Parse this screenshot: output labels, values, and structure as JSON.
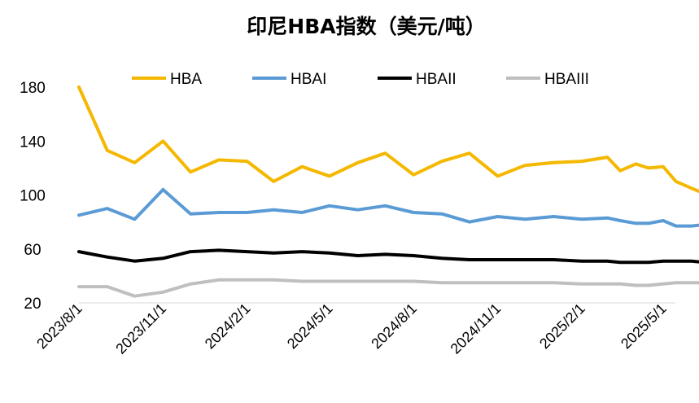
{
  "chart_data": {
    "type": "line",
    "title": "印尼HBA指数（美元/吨）",
    "xlabel": "",
    "ylabel": "",
    "ylim": [
      20,
      180
    ],
    "yticks": [
      "20",
      "60",
      "100",
      "140",
      "180"
    ],
    "xtick_labels": [
      "2023/8/1",
      "2023/11/1",
      "2024/2/1",
      "2024/5/1",
      "2024/8/1",
      "2024/11/1",
      "2025/2/1",
      "2025/5/1"
    ],
    "legend_position": "top",
    "grid": false,
    "x": [
      "2023/8/1",
      "2023/9/1",
      "2023/10/1",
      "2023/11/1",
      "2023/12/1",
      "2024/1/1",
      "2024/2/1",
      "2024/3/1",
      "2024/4/1",
      "2024/5/1",
      "2024/6/1",
      "2024/7/1",
      "2024/8/1",
      "2024/9/1",
      "2024/10/1",
      "2024/11/1",
      "2024/12/1",
      "2025/1/1",
      "2025/2/1",
      "2025/3/1",
      "2025/3/15",
      "2025/4/1",
      "2025/4/15",
      "2025/5/1",
      "2025/5/15",
      "2025/6/1",
      "2025/6/15"
    ],
    "series": [
      {
        "name": "HBA",
        "color": "#F5B800",
        "values": [
          180,
          133,
          124,
          140,
          117,
          126,
          125,
          110,
          121,
          114,
          124,
          131,
          115,
          125,
          131,
          114,
          122,
          124,
          125,
          128,
          118,
          123,
          120,
          121,
          110,
          105,
          101
        ]
      },
      {
        "name": "HBAI",
        "color": "#5B9BD5",
        "values": [
          85,
          90,
          82,
          104,
          86,
          87,
          87,
          89,
          87,
          92,
          89,
          92,
          87,
          86,
          80,
          84,
          82,
          84,
          82,
          83,
          81,
          79,
          79,
          81,
          77,
          77,
          78
        ]
      },
      {
        "name": "HBAII",
        "color": "#000000",
        "values": [
          58,
          54,
          51,
          53,
          58,
          59,
          58,
          57,
          58,
          57,
          55,
          56,
          55,
          53,
          52,
          52,
          52,
          52,
          51,
          51,
          50,
          50,
          50,
          51,
          51,
          51,
          50
        ]
      },
      {
        "name": "HBAIII",
        "color": "#BFBFBF",
        "values": [
          32,
          32,
          25,
          28,
          34,
          37,
          37,
          37,
          36,
          36,
          36,
          36,
          36,
          35,
          35,
          35,
          35,
          35,
          34,
          34,
          34,
          33,
          33,
          34,
          35,
          35,
          35
        ]
      }
    ]
  }
}
